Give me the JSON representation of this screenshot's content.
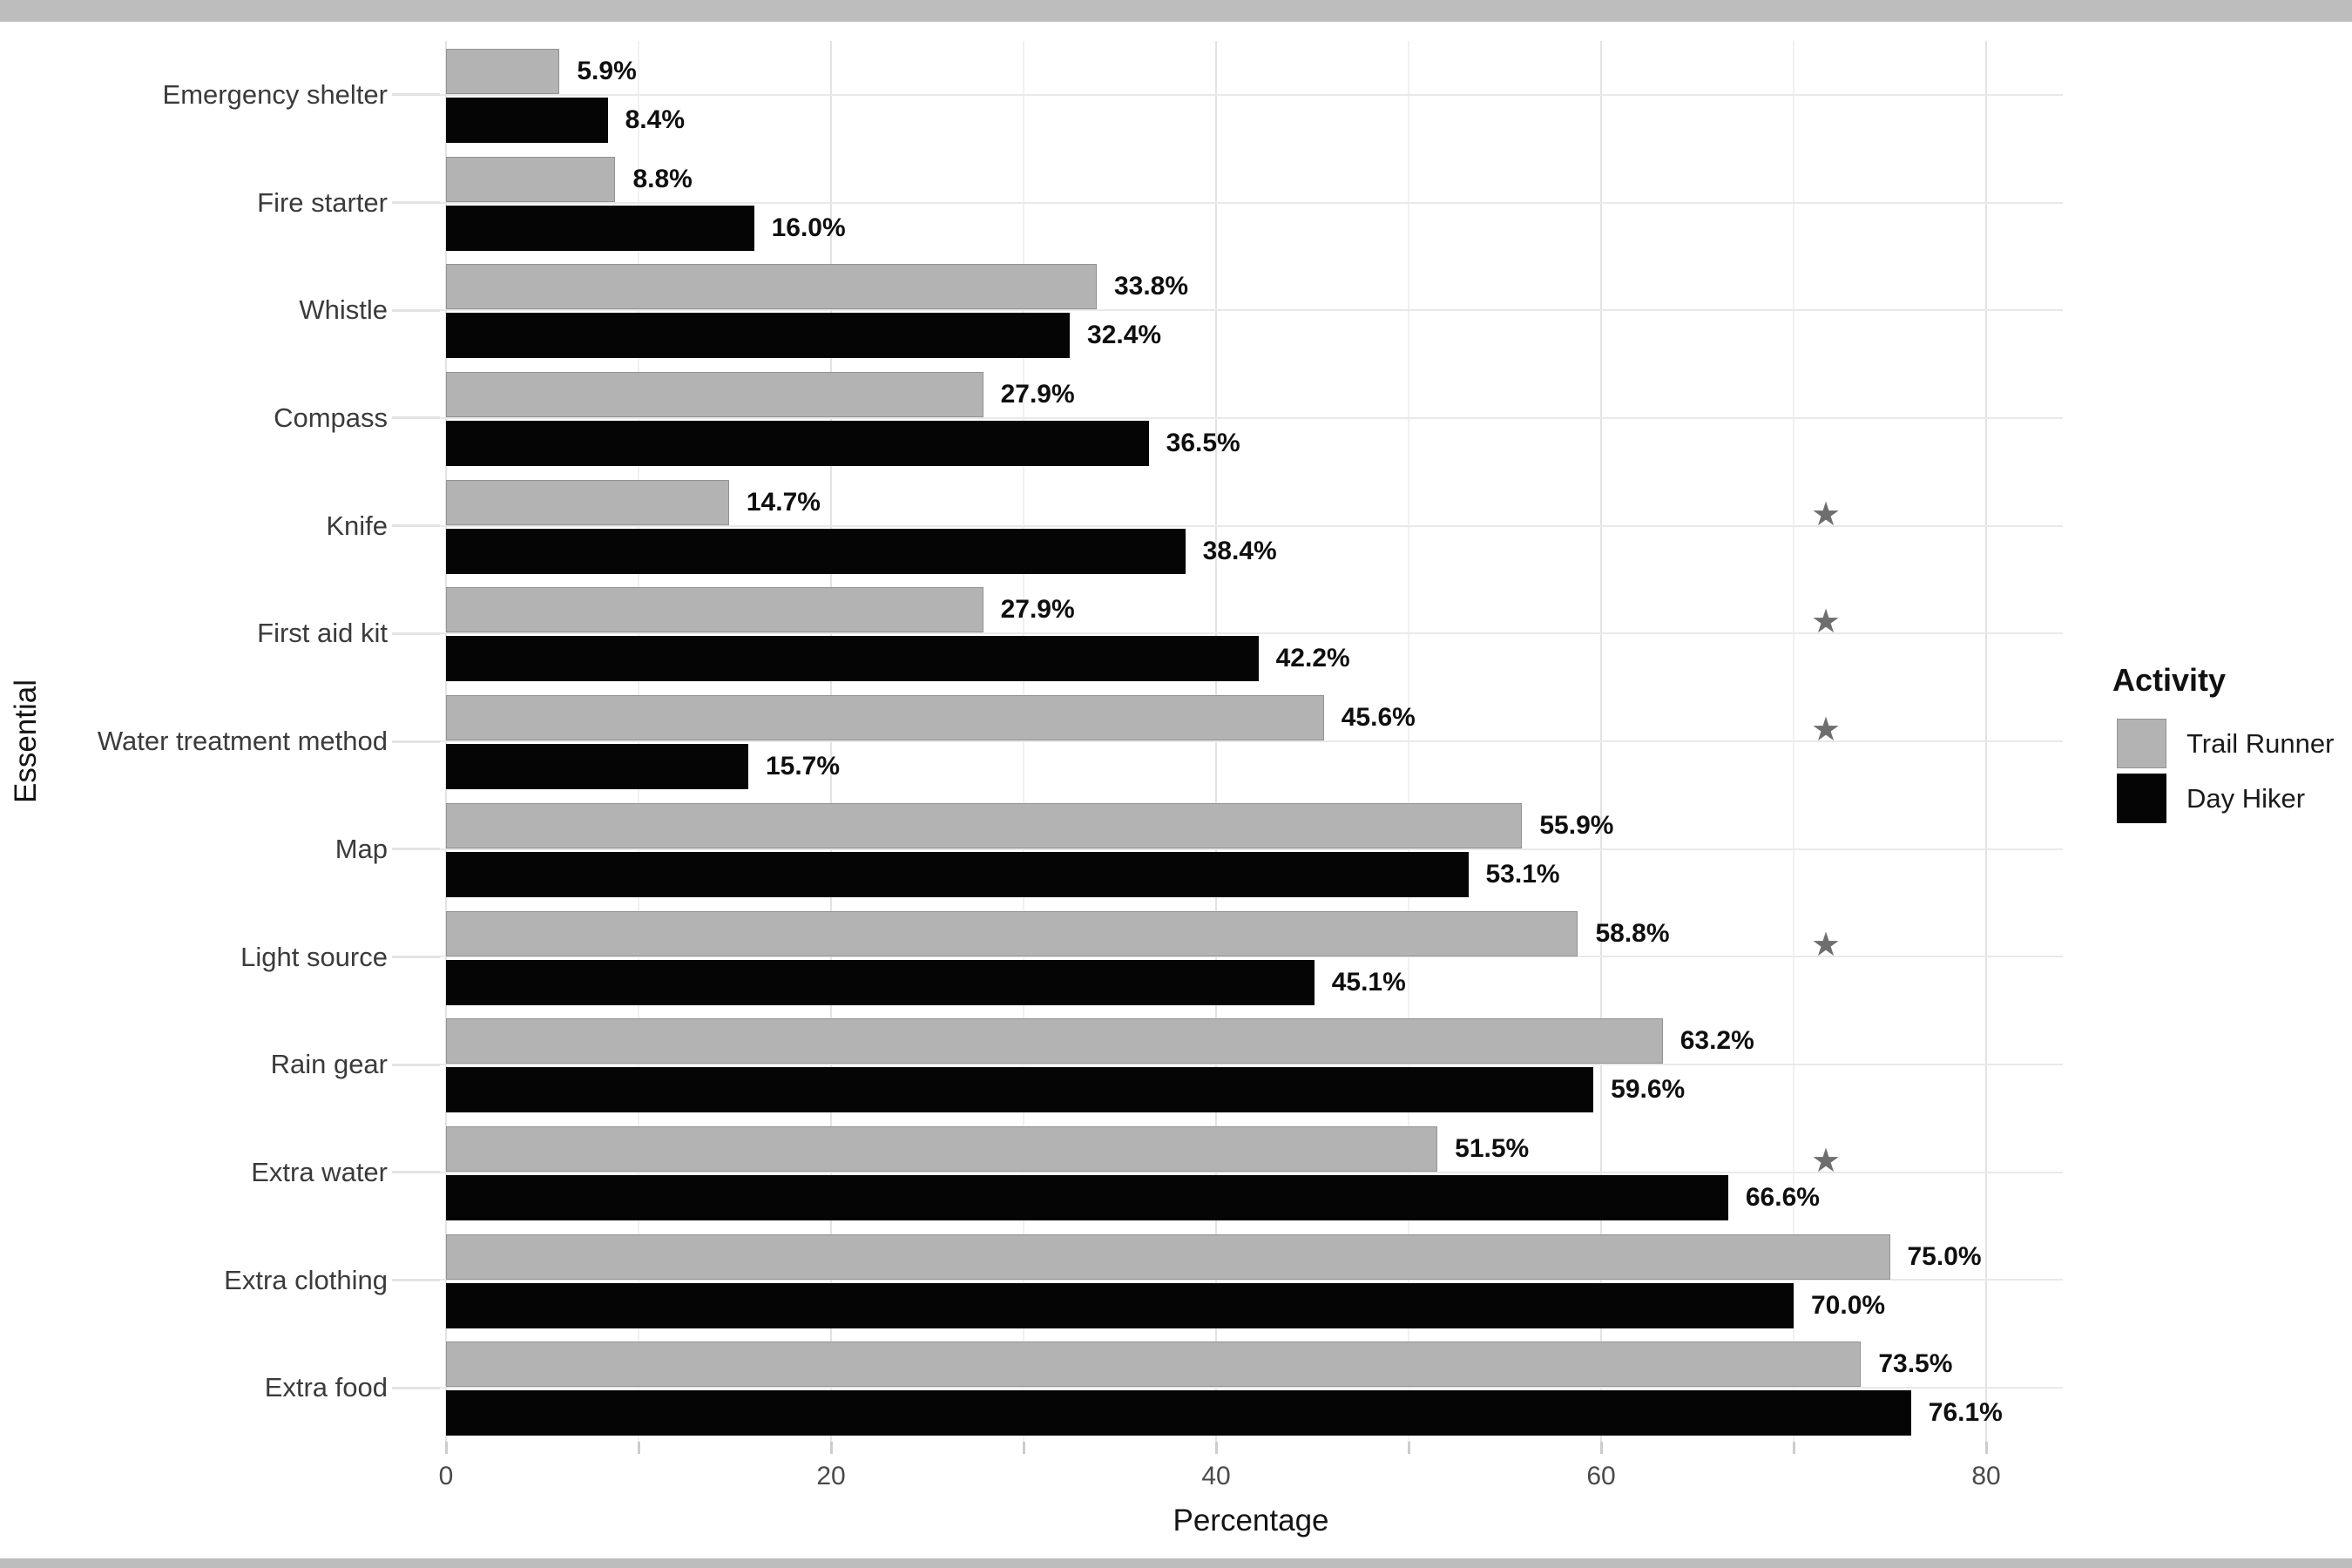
{
  "frame": {
    "top_strip_color": "#bdbdbd",
    "bottom_strip_color": "#bdbdbd",
    "background": "#ffffff"
  },
  "chart_data": {
    "type": "bar",
    "orientation": "horizontal",
    "title": "",
    "xlabel": "Percentage",
    "ylabel": "Essential",
    "grid": true,
    "xlim": [
      0,
      84
    ],
    "x_major_ticks": [
      0,
      20,
      40,
      60,
      80
    ],
    "x_minor_gridlines": [
      10,
      30,
      50,
      70
    ],
    "x_tick_marks_every": 10,
    "categories": [
      "Emergency shelter",
      "Fire starter",
      "Whistle",
      "Compass",
      "Knife",
      "First aid kit",
      "Water treatment method",
      "Map",
      "Light source",
      "Rain gear",
      "Extra water",
      "Extra clothing",
      "Extra food"
    ],
    "series": [
      {
        "name": "Trail Runner",
        "color": "#b3b3b3",
        "values": [
          5.9,
          8.8,
          33.8,
          27.9,
          14.7,
          27.9,
          45.6,
          55.9,
          58.8,
          63.2,
          51.5,
          75.0,
          73.5
        ]
      },
      {
        "name": "Day Hiker",
        "color": "#050505",
        "values": [
          8.4,
          16.0,
          32.4,
          36.5,
          38.4,
          42.2,
          15.7,
          53.1,
          45.1,
          59.6,
          66.6,
          70.0,
          76.1
        ]
      }
    ],
    "value_label_suffix": "%",
    "significance_marker": "★",
    "significance_marker_color": "#6e6e6e",
    "significant_categories": [
      "Knife",
      "First aid kit",
      "Water treatment method",
      "Light source",
      "Extra water"
    ],
    "legend": {
      "title": "Activity",
      "position": "right",
      "entries": [
        {
          "label": "Trail Runner",
          "color": "#b3b3b3"
        },
        {
          "label": "Day Hiker",
          "color": "#050505"
        }
      ]
    }
  }
}
